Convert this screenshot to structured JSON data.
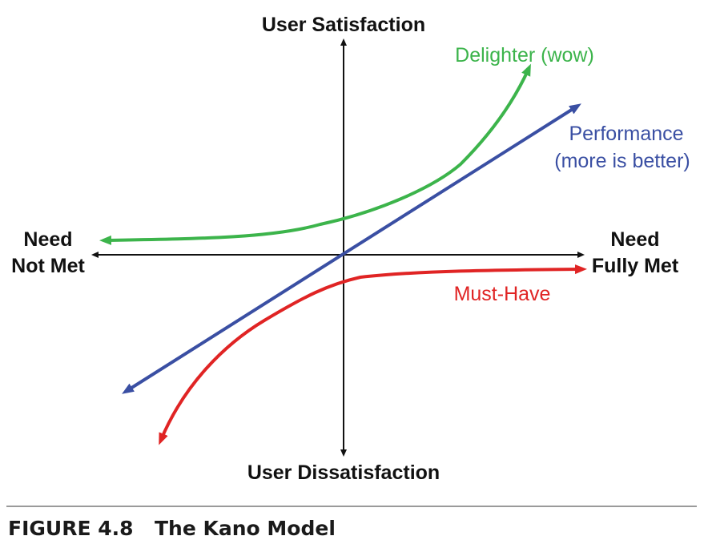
{
  "axes": {
    "top_label": "User Satisfaction",
    "bottom_label": "User Dissatisfaction",
    "left_label_line1": "Need",
    "left_label_line2": "Not Met",
    "right_label_line1": "Need",
    "right_label_line2": "Fully Met"
  },
  "curves": {
    "delighter": {
      "label": "Delighter (wow)",
      "color": "#3cb44b"
    },
    "performance": {
      "label_line1": "Performance",
      "label_line2": "(more is better)",
      "color": "#3a4fa3"
    },
    "must_have": {
      "label": "Must-Have",
      "color": "#e02424"
    }
  },
  "caption": {
    "number": "FIGURE 4.8",
    "title": "The Kano Model"
  }
}
